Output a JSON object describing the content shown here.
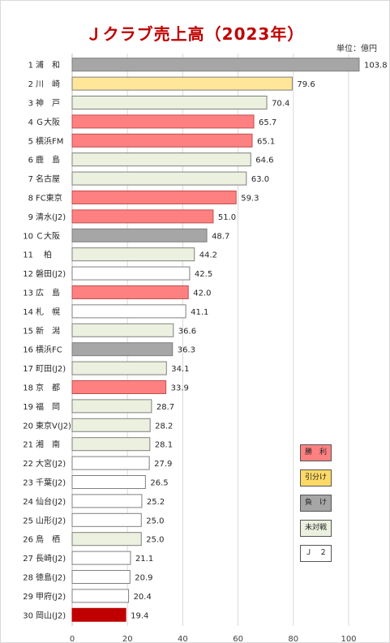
{
  "chart_data": {
    "type": "bar",
    "orientation": "horizontal",
    "title": "Ｊクラブ売上高（2023年）",
    "unit": "単位：億円",
    "xlim": [
      0,
      100
    ],
    "xticks": [
      "0",
      "20",
      "40",
      "60",
      "80",
      "100"
    ],
    "grid": true,
    "categories": [
      {
        "rank": "1",
        "name": "浦　和",
        "value": 103.8,
        "status": "負け"
      },
      {
        "rank": "2",
        "name": "川　崎",
        "value": 79.6,
        "status": "引分け"
      },
      {
        "rank": "3",
        "name": "神　戸",
        "value": 70.4,
        "status": "未対戦"
      },
      {
        "rank": "4",
        "name": "Ｇ大阪",
        "value": 65.7,
        "status": "勝利"
      },
      {
        "rank": "5",
        "name": "横浜FM",
        "value": 65.1,
        "status": "勝利"
      },
      {
        "rank": "6",
        "name": "鹿　島",
        "value": 64.6,
        "status": "未対戦"
      },
      {
        "rank": "7",
        "name": "名古屋",
        "value": 63.0,
        "status": "未対戦"
      },
      {
        "rank": "8",
        "name": "FC東京",
        "value": 59.3,
        "status": "勝利"
      },
      {
        "rank": "9",
        "name": "清水(J2)",
        "value": 51.0,
        "status": "勝利"
      },
      {
        "rank": "10",
        "name": "Ｃ大阪",
        "value": 48.7,
        "status": "負け"
      },
      {
        "rank": "11",
        "name": "　柏",
        "value": 44.2,
        "status": "未対戦"
      },
      {
        "rank": "12",
        "name": "磐田(J2)",
        "value": 42.5,
        "status": "Ｊ２"
      },
      {
        "rank": "13",
        "name": "広　島",
        "value": 42.0,
        "status": "勝利"
      },
      {
        "rank": "14",
        "name": "札　幌",
        "value": 41.1,
        "status": "Ｊ２"
      },
      {
        "rank": "15",
        "name": "新　潟",
        "value": 36.6,
        "status": "未対戦"
      },
      {
        "rank": "16",
        "name": "横浜FC",
        "value": 36.3,
        "status": "負け"
      },
      {
        "rank": "17",
        "name": "町田(J2)",
        "value": 34.1,
        "status": "未対戦"
      },
      {
        "rank": "18",
        "name": "京　都",
        "value": 33.9,
        "status": "勝利"
      },
      {
        "rank": "19",
        "name": "福　岡",
        "value": 28.7,
        "status": "未対戦"
      },
      {
        "rank": "20",
        "name": "東京V(J2)",
        "value": 28.2,
        "status": "未対戦"
      },
      {
        "rank": "21",
        "name": "湘　南",
        "value": 28.1,
        "status": "未対戦"
      },
      {
        "rank": "22",
        "name": "大宮(J2)",
        "value": 27.9,
        "status": "Ｊ２"
      },
      {
        "rank": "23",
        "name": "千葉(J2)",
        "value": 26.5,
        "status": "Ｊ２"
      },
      {
        "rank": "24",
        "name": "仙台(J2)",
        "value": 25.2,
        "status": "Ｊ２"
      },
      {
        "rank": "25",
        "name": "山形(J2)",
        "value": 25.0,
        "status": "Ｊ２"
      },
      {
        "rank": "26",
        "name": "鳥　栖",
        "value": 25.0,
        "status": "未対戦"
      },
      {
        "rank": "27",
        "name": "長崎(J2)",
        "value": 21.1,
        "status": "Ｊ２"
      },
      {
        "rank": "28",
        "name": "徳島(J2)",
        "value": 20.9,
        "status": "Ｊ２"
      },
      {
        "rank": "29",
        "name": "甲府(J2)",
        "value": 20.4,
        "status": "Ｊ２"
      },
      {
        "rank": "30",
        "name": "岡山(J2)",
        "value": 19.4,
        "status": "self"
      }
    ],
    "legend": [
      {
        "label": "勝　利",
        "key": "勝利",
        "fill": "#ff8080"
      },
      {
        "label": "引分け",
        "key": "引分け",
        "fill": "#ffd966"
      },
      {
        "label": "負　け",
        "key": "負け",
        "fill": "#a6a6a6"
      },
      {
        "label": "未対戦",
        "key": "未対戦",
        "fill": "#ebf1de"
      },
      {
        "label": "Ｊ　２",
        "key": "Ｊ２",
        "fill": "#ffffff"
      }
    ],
    "status_colors": {
      "勝利": {
        "fill": "#ff8080",
        "stroke": "#c0504d"
      },
      "引分け": {
        "fill": "#ffe699",
        "stroke": "#7f7f7f"
      },
      "負け": {
        "fill": "#a6a6a6",
        "stroke": "#7f7f7f"
      },
      "未対戦": {
        "fill": "#ebf1de",
        "stroke": "#7f7f7f"
      },
      "Ｊ２": {
        "fill": "#ffffff",
        "stroke": "#7f7f7f"
      },
      "self": {
        "fill": "#c00000",
        "stroke": "#c00000"
      }
    }
  }
}
